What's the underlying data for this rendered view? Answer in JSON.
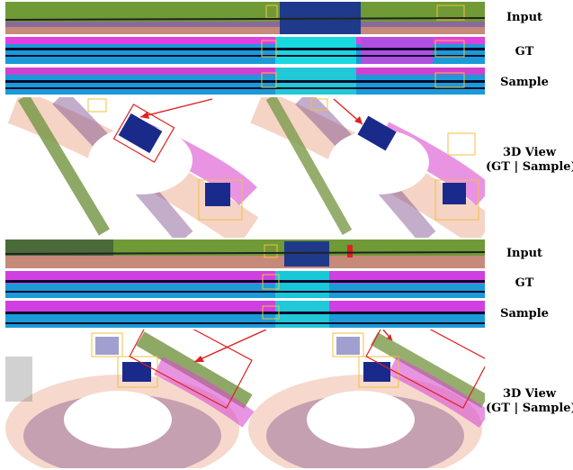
{
  "panel_a": {
    "labels": {
      "input": "Input",
      "gt": "GT",
      "sample": "Sample"
    },
    "view_label_line1": "3D View",
    "view_label_line2": "(GT | Sample)"
  },
  "panel_b": {
    "labels": {
      "input": "Input",
      "gt": "GT",
      "sample": "Sample"
    },
    "view_label_line1": "3D View",
    "view_label_line2": "(GT | Sample)"
  },
  "colors": {
    "input_green": "#7aa23a",
    "gt_cyan": "#18c8d8",
    "gt_magenta": "#e040e0",
    "point_magenta": "#d94cd0",
    "point_purple": "#7a4a8a",
    "point_peach": "#e8a080",
    "car_blue": "#1a2a8a",
    "guardrail_green": "#7a9a4a",
    "highlight_box": "#f0c040",
    "arrow_red": "#e02020"
  }
}
